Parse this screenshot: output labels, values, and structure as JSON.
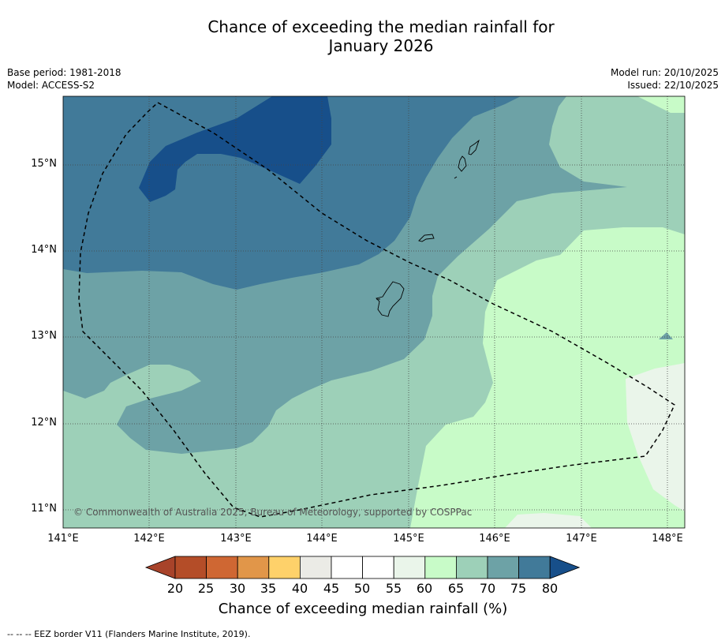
{
  "title_line1": "Chance of exceeding the median rainfall for",
  "title_line2": "January 2026",
  "base_period": "Base period: 1981-2018",
  "model": "Model: ACCESS-S2",
  "model_run": "Model run: 20/10/2025",
  "issued": "Issued: 22/10/2025",
  "lat_labels": [
    "15°N",
    "14°N",
    "13°N",
    "12°N",
    "11°N"
  ],
  "lon_labels": [
    "141°E",
    "142°E",
    "143°E",
    "144°E",
    "145°E",
    "146°E",
    "147°E",
    "148°E"
  ],
  "copyright": "© Commonwealth of Australia 2025, Bureau of Meteorology, supported by COSPPac",
  "colorbar": {
    "ticks": [
      "20",
      "25",
      "30",
      "35",
      "40",
      "45",
      "50",
      "55",
      "60",
      "65",
      "70",
      "75",
      "80"
    ],
    "label": "Chance of exceeding median rainfall (%)",
    "below_color": "#a8432a",
    "above_color": "#174f8a",
    "colors": [
      "#b44d28",
      "#cf6733",
      "#e19649",
      "#fed16a",
      "#ebebe6",
      "#ffffff",
      "#ffffff",
      "#eaf5ea",
      "#c8fbc8",
      "#9dd0b8",
      "#6da2a6",
      "#417a99"
    ]
  },
  "footer": "-- -- -- EEZ border V11 (Flanders Marine Institute, 2019)."
}
